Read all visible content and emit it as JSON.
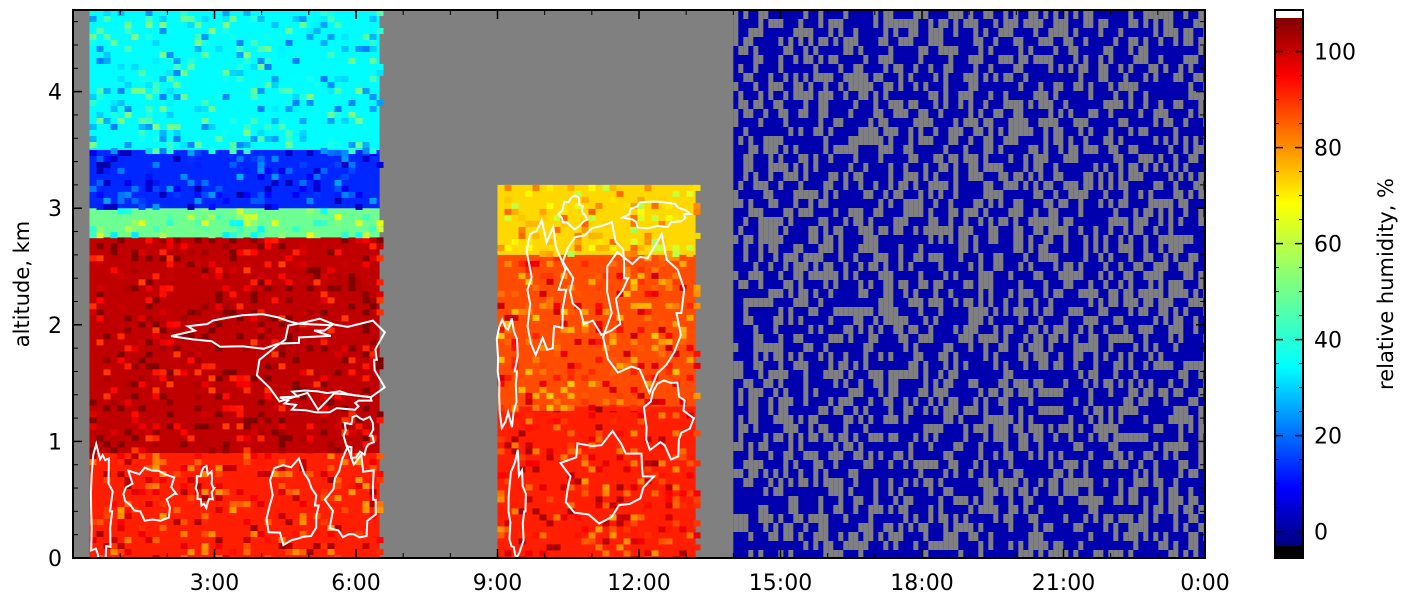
{
  "chart_data": {
    "type": "heatmap",
    "title": "",
    "xlabel": "",
    "ylabel": "altitude, km",
    "x_range_hours": [
      0.0,
      24.0
    ],
    "y_range_km": [
      0.0,
      4.7
    ],
    "x_ticks": [
      {
        "value": 3,
        "label": "3:00"
      },
      {
        "value": 6,
        "label": "6:00"
      },
      {
        "value": 9,
        "label": "9:00"
      },
      {
        "value": 12,
        "label": "12:00"
      },
      {
        "value": 15,
        "label": "15:00"
      },
      {
        "value": 18,
        "label": "18:00"
      },
      {
        "value": 21,
        "label": "21:00"
      },
      {
        "value": 24,
        "label": "0:00"
      }
    ],
    "y_ticks": [
      {
        "value": 0,
        "label": "0"
      },
      {
        "value": 1,
        "label": "1"
      },
      {
        "value": 2,
        "label": "2"
      },
      {
        "value": 3,
        "label": "3"
      },
      {
        "value": 4,
        "label": "4"
      }
    ],
    "grid": false,
    "missing_data_color": "#808080",
    "contour_color": "#ffffff",
    "colorbar": {
      "label": "relative humidity, %",
      "range": [
        -3,
        107
      ],
      "ticks": [
        {
          "value": 0,
          "label": "0"
        },
        {
          "value": 20,
          "label": "20"
        },
        {
          "value": 40,
          "label": "40"
        },
        {
          "value": 60,
          "label": "60"
        },
        {
          "value": 80,
          "label": "80"
        },
        {
          "value": 100,
          "label": "100"
        }
      ],
      "over_color": "#ffffff",
      "under_color": "#000000",
      "colormap": "jet"
    },
    "no_data_periods_hours": [
      [
        0.0,
        0.35
      ],
      [
        6.5,
        9.0
      ],
      [
        13.2,
        14.0
      ]
    ],
    "regions": [
      {
        "x": [
          0.35,
          6.5
        ],
        "y": [
          0.0,
          0.9
        ],
        "rh": 90
      },
      {
        "x": [
          0.35,
          6.5
        ],
        "y": [
          0.9,
          2.75
        ],
        "rh": 100
      },
      {
        "x": [
          0.35,
          6.5
        ],
        "y": [
          2.75,
          3.0
        ],
        "rh": 50
      },
      {
        "x": [
          0.35,
          6.5
        ],
        "y": [
          3.0,
          3.5
        ],
        "rh": 15
      },
      {
        "x": [
          0.35,
          6.5
        ],
        "y": [
          3.5,
          4.7
        ],
        "rh": 38
      },
      {
        "x": [
          9.0,
          13.2
        ],
        "y": [
          0.0,
          1.3
        ],
        "rh": 90
      },
      {
        "x": [
          9.0,
          13.2
        ],
        "y": [
          1.3,
          2.6
        ],
        "rh": 85
      },
      {
        "x": [
          9.0,
          13.2
        ],
        "y": [
          2.6,
          3.2
        ],
        "rh": 70
      },
      {
        "x": [
          14.0,
          24.0
        ],
        "y": [
          0.0,
          4.7
        ],
        "rh": 2
      }
    ]
  }
}
